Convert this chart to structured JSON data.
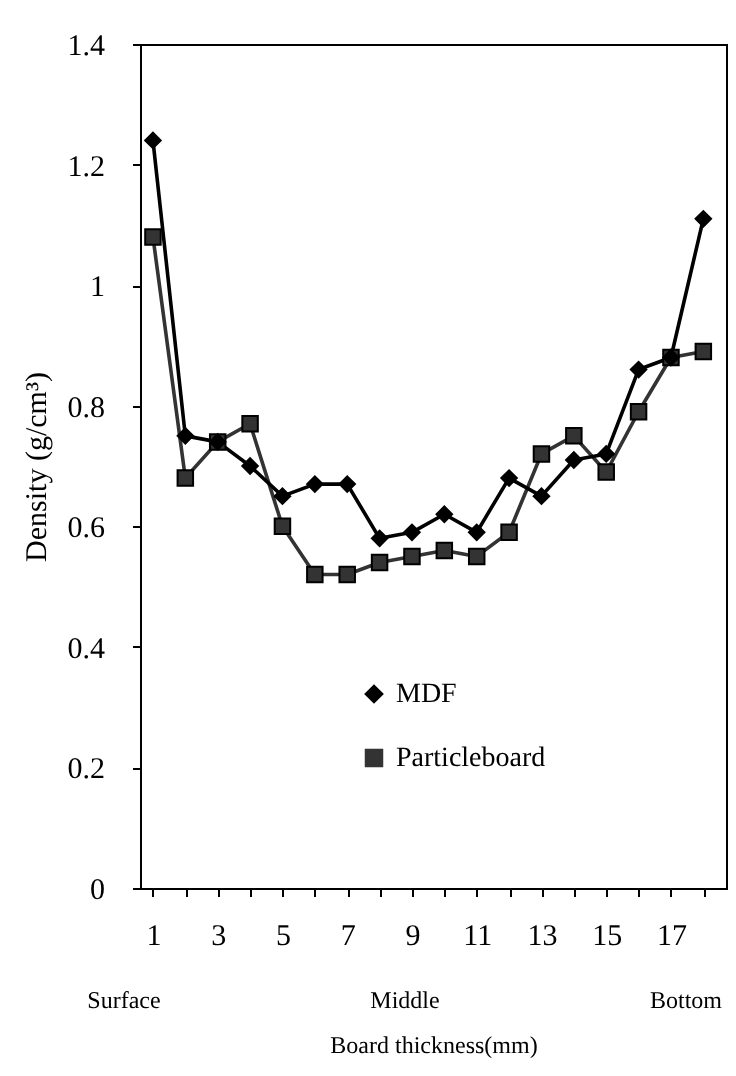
{
  "chart_data": {
    "type": "line",
    "xlabel": "Board thickness(mm)",
    "ylabel": "Density (g/cm³)",
    "x": [
      1,
      2,
      3,
      4,
      5,
      6,
      7,
      8,
      9,
      10,
      11,
      12,
      13,
      14,
      15,
      16,
      17,
      18
    ],
    "series": [
      {
        "name": "MDF",
        "color": "#000000",
        "marker": "diamond",
        "values": [
          1.24,
          0.75,
          0.74,
          0.7,
          0.65,
          0.67,
          0.67,
          0.58,
          0.59,
          0.62,
          0.59,
          0.68,
          0.65,
          0.71,
          0.72,
          0.86,
          0.88,
          1.11
        ]
      },
      {
        "name": "Particleboard",
        "color": "#333333",
        "marker": "square",
        "values": [
          1.08,
          0.68,
          0.74,
          0.77,
          0.6,
          0.52,
          0.52,
          0.54,
          0.55,
          0.56,
          0.55,
          0.59,
          0.72,
          0.75,
          0.69,
          0.79,
          0.88,
          0.89
        ]
      }
    ],
    "xlim": [
      0.6,
      18.7
    ],
    "xticks": [
      1,
      {
        "value": 2,
        "label": null
      },
      3,
      {
        "value": 4,
        "label": null
      },
      5,
      {
        "value": 6,
        "label": null
      },
      7,
      {
        "value": 8,
        "label": null
      },
      9,
      {
        "value": 10,
        "label": null
      },
      11,
      {
        "value": 12,
        "label": null
      },
      13,
      {
        "value": 14,
        "label": null
      },
      15,
      {
        "value": 16,
        "label": null
      },
      17,
      {
        "value": 18,
        "label": null
      }
    ],
    "ylim": [
      0,
      1.4
    ],
    "yticks": [
      0,
      0.2,
      0.4,
      0.6,
      0.8,
      1,
      1.2,
      1.4
    ],
    "grid": false,
    "legend": "bottom right",
    "line_style": "solid",
    "annotations": [
      "Surface",
      "Middle",
      "Bottom"
    ]
  }
}
